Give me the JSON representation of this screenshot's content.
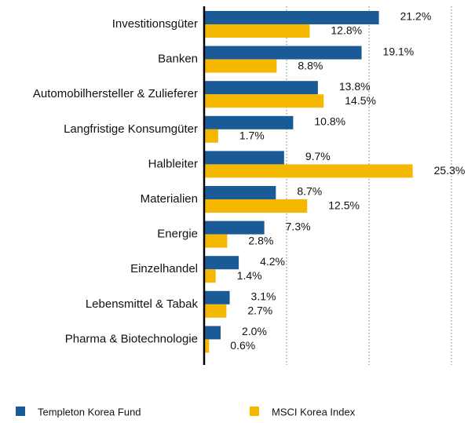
{
  "chart_data": {
    "type": "hbar",
    "categories": [
      "Investitionsgüter",
      "Banken",
      "Automobilhersteller & Zulieferer",
      "Langfristige Konsumgüter",
      "Halbleiter",
      "Materialien",
      "Energie",
      "Einzelhandel",
      "Lebensmittel & Tabak",
      "Pharma & Biotechnologie"
    ],
    "series": [
      {
        "name": "Templeton Korea Fund",
        "color": "#1a5a96",
        "values": [
          21.2,
          19.1,
          13.8,
          10.8,
          9.7,
          8.7,
          7.3,
          4.2,
          3.1,
          2.0
        ],
        "value_labels": [
          "21.2%",
          "19.1%",
          "13.8%",
          "10.8%",
          "9.7%",
          "8.7%",
          "7.3%",
          "4.2%",
          "3.1%",
          "2.0%"
        ]
      },
      {
        "name": "MSCI Korea Index",
        "color": "#f5b800",
        "values": [
          12.8,
          8.8,
          14.5,
          1.7,
          25.3,
          12.5,
          2.8,
          1.4,
          2.7,
          0.6
        ],
        "value_labels": [
          "12.8%",
          "8.8%",
          "14.5%",
          "1.7%",
          "25.3%",
          "12.5%",
          "2.8%",
          "1.4%",
          "2.7%",
          "0.6%"
        ]
      }
    ],
    "xlim": [
      0,
      30
    ],
    "xticks": [
      10,
      20,
      30
    ],
    "grid": true,
    "legend": "bottom"
  }
}
